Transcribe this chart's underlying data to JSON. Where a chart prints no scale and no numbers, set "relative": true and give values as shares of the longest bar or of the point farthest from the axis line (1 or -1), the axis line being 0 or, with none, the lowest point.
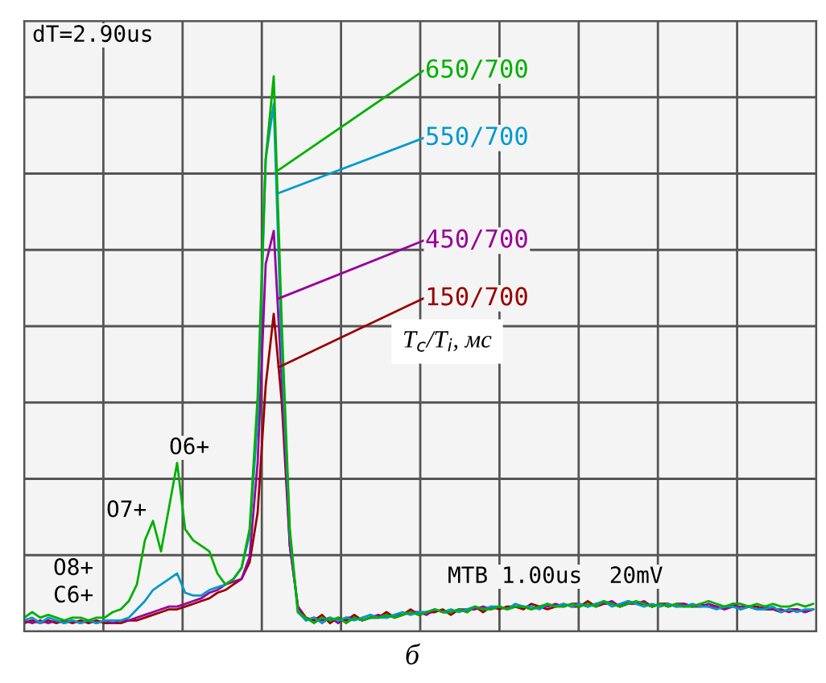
{
  "chart_data": {
    "type": "line",
    "relative": true,
    "grid": true,
    "legend": false,
    "tick_labels": false,
    "categories": [
      null,
      null,
      null,
      null,
      null,
      null,
      null,
      null,
      null,
      null,
      null,
      null,
      null,
      null,
      null,
      null,
      null,
      null,
      null,
      null,
      null,
      null,
      null,
      null,
      null,
      null,
      null,
      null,
      null,
      null,
      null,
      null,
      null,
      null,
      null,
      null,
      null,
      null,
      null,
      null,
      null,
      null,
      null,
      null,
      null,
      null,
      null,
      null,
      null,
      null,
      null,
      null,
      null,
      null,
      null,
      null,
      null,
      null,
      null,
      null,
      null,
      null,
      null,
      null,
      null,
      null,
      null,
      null,
      null,
      null,
      null,
      null,
      null,
      null,
      null,
      null,
      null,
      null,
      null,
      null,
      null,
      null,
      null,
      null,
      null,
      null,
      null,
      null,
      null,
      null,
      null,
      null,
      null,
      null,
      null,
      null,
      null,
      null,
      null
    ],
    "series": [
      {
        "name": "650/700",
        "color": "#00b000",
        "values": [
          0.02,
          0.03,
          0.02,
          0.025,
          0.02,
          0.015,
          0.02,
          0.02,
          0.015,
          0.02,
          0.02,
          0.03,
          0.035,
          0.05,
          0.08,
          0.16,
          0.195,
          0.14,
          0.22,
          0.3,
          0.18,
          0.16,
          0.15,
          0.14,
          0.1,
          0.08,
          0.09,
          0.11,
          0.18,
          0.42,
          0.85,
          1.0,
          0.55,
          0.18,
          0.03,
          0.02,
          0.01,
          0.02,
          0.015,
          0.02,
          0.01,
          0.02,
          0.015,
          0.02,
          0.02,
          0.025,
          0.02,
          0.025,
          0.03,
          0.025,
          0.03,
          0.035,
          0.03,
          0.03,
          0.035,
          0.03,
          0.04,
          0.035,
          0.035,
          0.04,
          0.035,
          0.04,
          0.04,
          0.035,
          0.04,
          0.045,
          0.04,
          0.04,
          0.045,
          0.04,
          0.045,
          0.04,
          0.05,
          0.045,
          0.04,
          0.045,
          0.05,
          0.045,
          0.04,
          0.045,
          0.04,
          0.045,
          0.04,
          0.04,
          0.045,
          0.05,
          0.045,
          0.04,
          0.045,
          0.045,
          0.04,
          0.045,
          0.04,
          0.045,
          0.04,
          0.04,
          0.045,
          0.04,
          0.045
        ]
      },
      {
        "name": "550/700",
        "color": "#0099cc",
        "values": [
          0.015,
          0.02,
          0.01,
          0.02,
          0.015,
          0.01,
          0.015,
          0.01,
          0.015,
          0.01,
          0.015,
          0.015,
          0.015,
          0.02,
          0.035,
          0.05,
          0.07,
          0.08,
          0.09,
          0.1,
          0.065,
          0.06,
          0.06,
          0.07,
          0.075,
          0.08,
          0.09,
          0.11,
          0.17,
          0.38,
          0.85,
          0.95,
          0.5,
          0.17,
          0.03,
          0.015,
          0.02,
          0.01,
          0.02,
          0.015,
          0.02,
          0.015,
          0.02,
          0.025,
          0.02,
          0.02,
          0.025,
          0.03,
          0.025,
          0.03,
          0.03,
          0.035,
          0.03,
          0.035,
          0.03,
          0.035,
          0.04,
          0.035,
          0.04,
          0.04,
          0.035,
          0.045,
          0.04,
          0.04,
          0.035,
          0.045,
          0.04,
          0.045,
          0.04,
          0.045,
          0.04,
          0.045,
          0.05,
          0.04,
          0.045,
          0.05,
          0.045,
          0.04,
          0.045,
          0.04,
          0.045,
          0.04,
          0.04,
          0.045,
          0.04,
          0.04,
          0.035,
          0.04,
          0.04,
          0.035,
          0.04,
          0.035,
          0.035,
          0.04,
          0.03,
          0.035,
          0.03,
          0.035,
          0.035
        ]
      },
      {
        "name": "450/700",
        "color": "#990099",
        "values": [
          0.015,
          0.01,
          0.015,
          0.01,
          0.015,
          0.01,
          0.015,
          0.01,
          0.015,
          0.01,
          0.015,
          0.01,
          0.015,
          0.015,
          0.02,
          0.025,
          0.03,
          0.035,
          0.04,
          0.04,
          0.045,
          0.05,
          0.055,
          0.065,
          0.07,
          0.08,
          0.085,
          0.09,
          0.13,
          0.3,
          0.66,
          0.72,
          0.45,
          0.15,
          0.04,
          0.015,
          0.02,
          0.015,
          0.02,
          0.01,
          0.02,
          0.02,
          0.015,
          0.02,
          0.025,
          0.02,
          0.025,
          0.025,
          0.03,
          0.03,
          0.025,
          0.035,
          0.03,
          0.03,
          0.035,
          0.035,
          0.035,
          0.04,
          0.035,
          0.04,
          0.035,
          0.04,
          0.04,
          0.035,
          0.04,
          0.04,
          0.045,
          0.04,
          0.045,
          0.045,
          0.04,
          0.045,
          0.045,
          0.05,
          0.04,
          0.045,
          0.045,
          0.05,
          0.04,
          0.045,
          0.04,
          0.045,
          0.045,
          0.04,
          0.04,
          0.045,
          0.04,
          0.035,
          0.04,
          0.04,
          0.04,
          0.035,
          0.04,
          0.035,
          0.035,
          0.03,
          0.035,
          0.03,
          0.035
        ]
      },
      {
        "name": "150/700",
        "color": "#990000",
        "values": [
          0.01,
          0.015,
          0.01,
          0.015,
          0.01,
          0.015,
          0.01,
          0.015,
          0.01,
          0.015,
          0.01,
          0.01,
          0.01,
          0.015,
          0.015,
          0.02,
          0.025,
          0.03,
          0.035,
          0.035,
          0.04,
          0.045,
          0.05,
          0.055,
          0.065,
          0.07,
          0.08,
          0.09,
          0.12,
          0.21,
          0.44,
          0.57,
          0.41,
          0.15,
          0.04,
          0.02,
          0.015,
          0.025,
          0.01,
          0.02,
          0.015,
          0.025,
          0.015,
          0.02,
          0.02,
          0.03,
          0.02,
          0.025,
          0.035,
          0.025,
          0.03,
          0.03,
          0.035,
          0.025,
          0.035,
          0.03,
          0.04,
          0.03,
          0.04,
          0.035,
          0.04,
          0.04,
          0.035,
          0.045,
          0.04,
          0.035,
          0.04,
          0.045,
          0.04,
          0.04,
          0.05,
          0.04,
          0.045,
          0.045,
          0.04,
          0.05,
          0.045,
          0.045,
          0.04,
          0.045,
          0.045,
          0.04,
          0.045,
          0.04,
          0.045,
          0.04,
          0.04,
          0.035,
          0.045,
          0.035,
          0.04,
          0.04,
          0.035,
          0.035,
          0.03,
          0.035,
          0.035,
          0.03,
          0.035
        ]
      }
    ],
    "annotations": [
      "dT=2.90us",
      "O6+",
      "O7+",
      "O8+",
      "C6+",
      "MTB 1.00us  20mV",
      "T$_{c}$/T$_{i}$, мс",
      "б"
    ]
  }
}
